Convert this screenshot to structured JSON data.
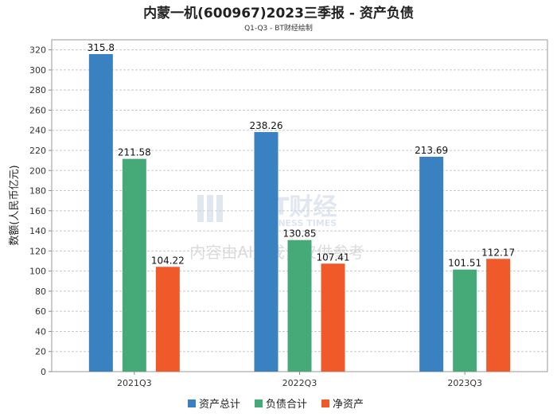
{
  "chart_data": {
    "type": "bar",
    "title": "内蒙一机(600967)2023三季报 - 资产负债",
    "subtitle": "Q1-Q3 - BT财经绘制",
    "ylabel": "数额(人民币亿元)",
    "xlabel": "",
    "ylim": [
      0,
      330
    ],
    "yticks": [
      0,
      20,
      40,
      60,
      80,
      100,
      120,
      140,
      160,
      180,
      200,
      220,
      240,
      260,
      280,
      300,
      320
    ],
    "grid": true,
    "categories": [
      "2021Q3",
      "2022Q3",
      "2023Q3"
    ],
    "series": [
      {
        "name": "资产总计",
        "color": "#3a81c1",
        "values": [
          315.8,
          238.26,
          213.69
        ],
        "labels": [
          "315.8",
          "238.26",
          "213.69"
        ]
      },
      {
        "name": "负债合计",
        "color": "#46aa78",
        "values": [
          211.58,
          130.85,
          101.51
        ],
        "labels": [
          "211.58",
          "130.85",
          "101.51"
        ]
      },
      {
        "name": "净资产",
        "color": "#f05a2a",
        "values": [
          104.22,
          107.41,
          112.17
        ],
        "labels": [
          "104.22",
          "107.41",
          "112.17"
        ]
      }
    ],
    "legend_position": "bottom-center"
  },
  "watermark": {
    "brand": "BT财经",
    "brand_sub": "BUSINESS TIMES",
    "notice": "内容由AI生成，仅供参考"
  }
}
